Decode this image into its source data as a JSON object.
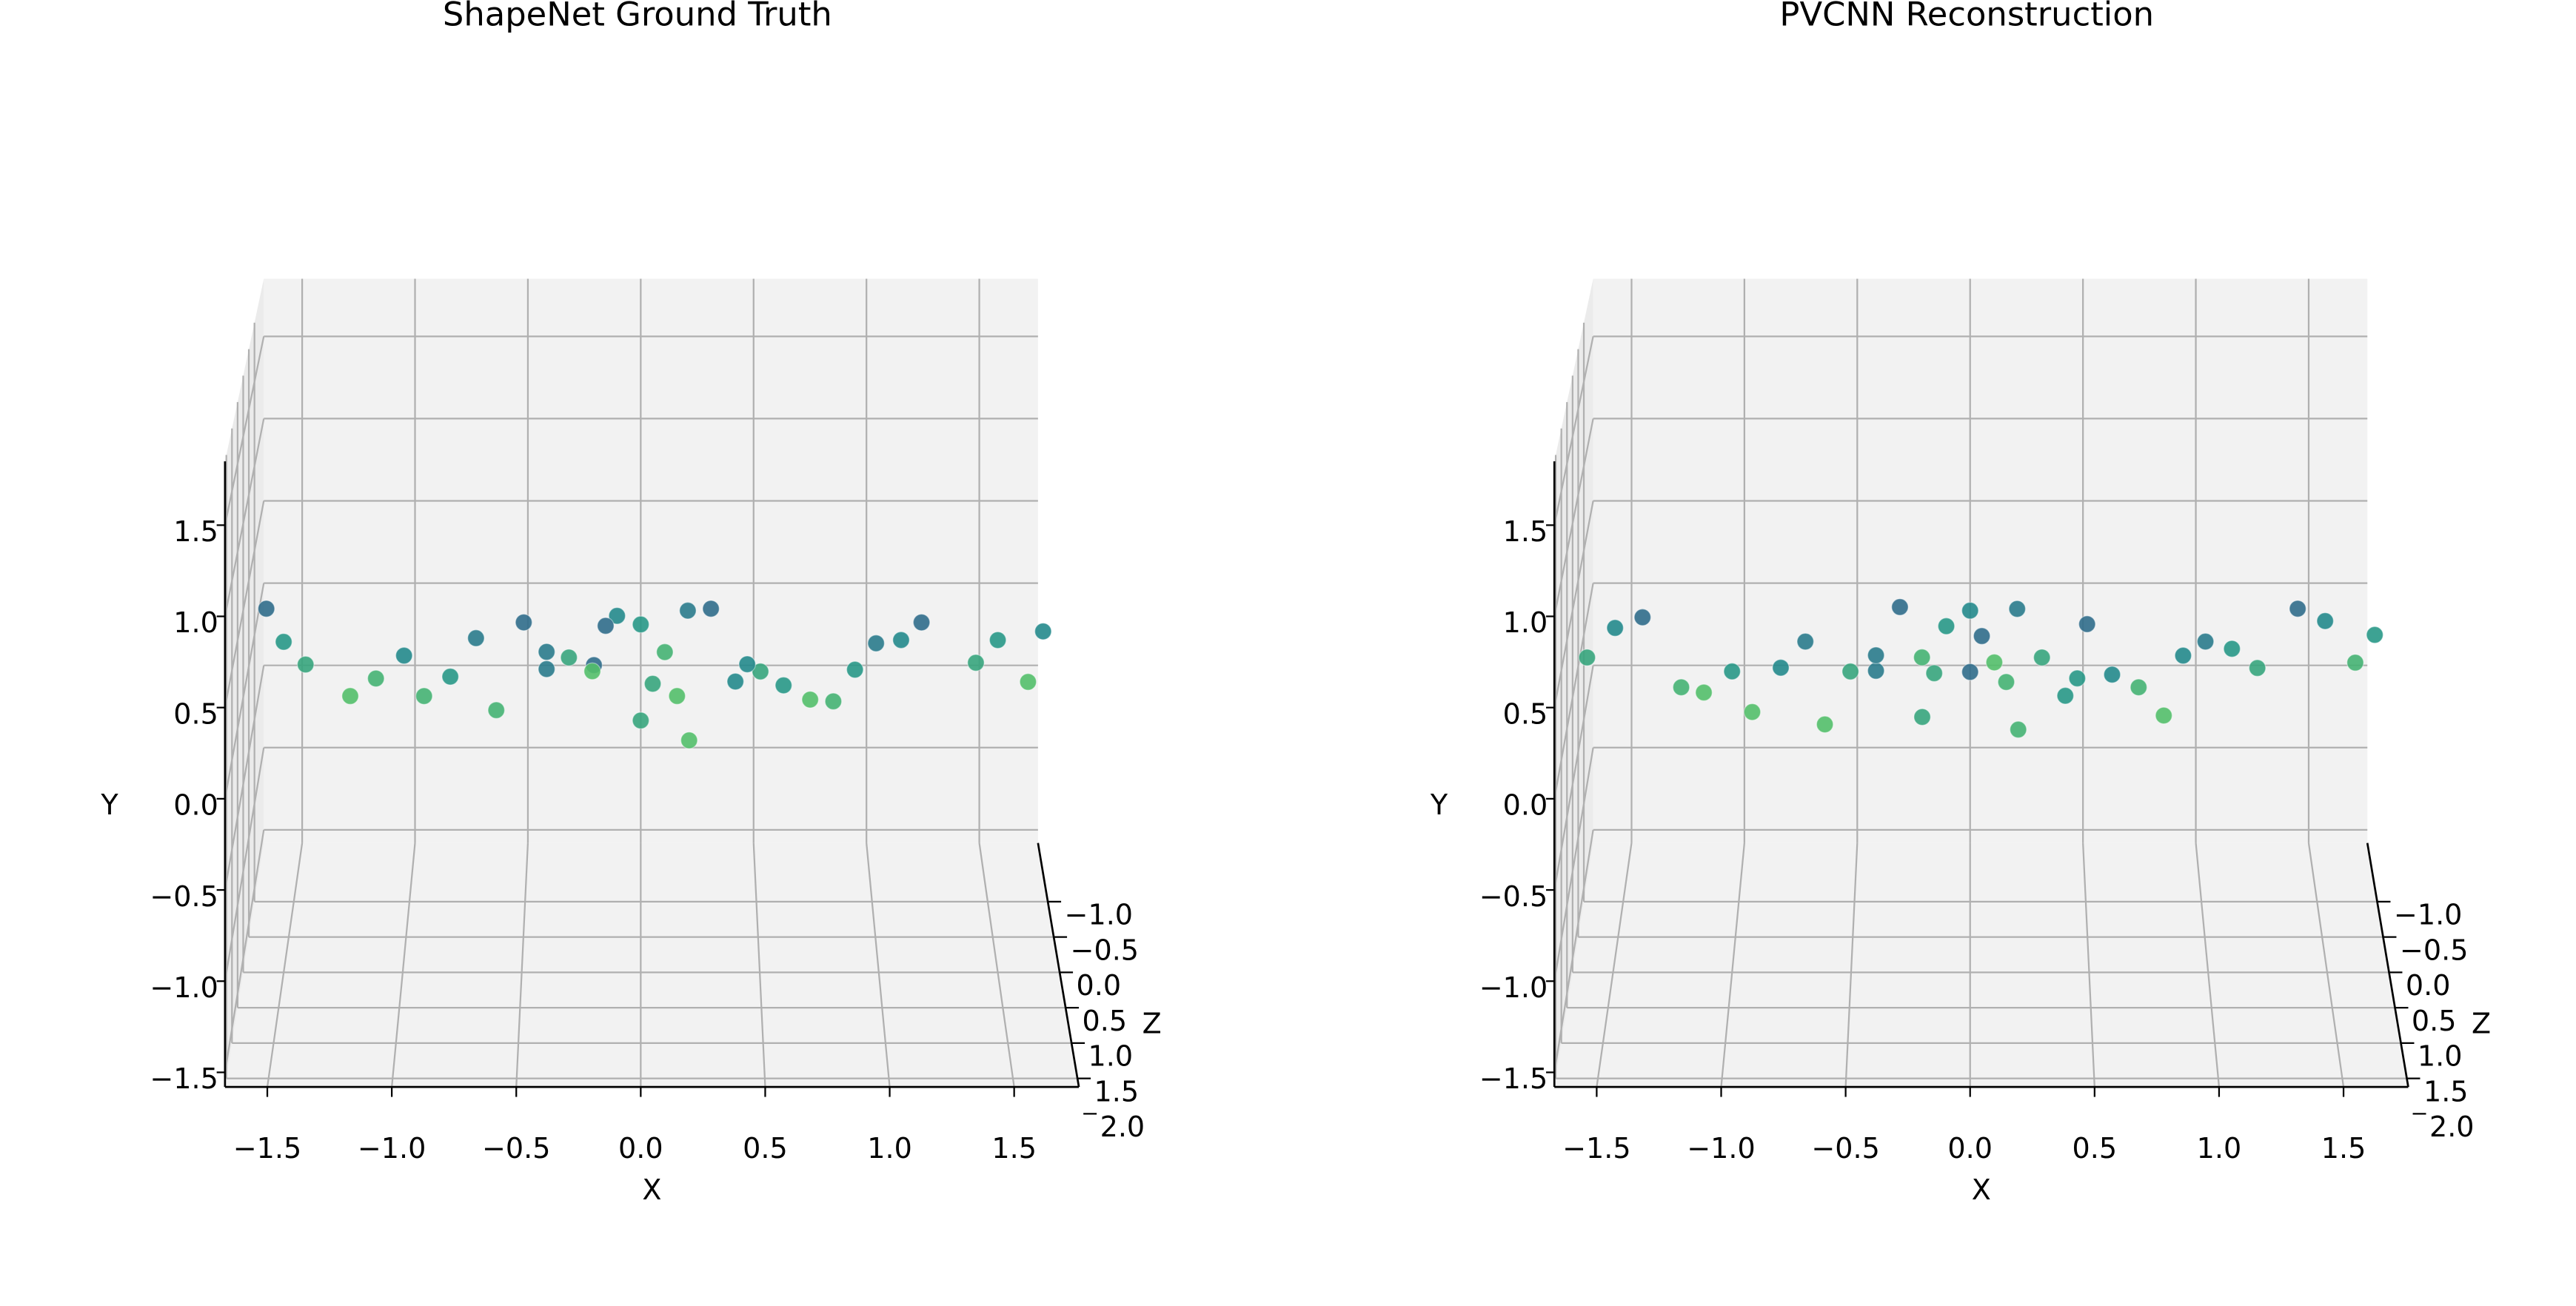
{
  "chart_data": [
    {
      "type": "scatter3d",
      "title": "ShapeNet Ground Truth",
      "xlabel": "X",
      "ylabel": "Y",
      "zlabel": "Z",
      "xlim": [
        -1.67,
        1.76
      ],
      "ylim": [
        -1.58,
        1.85
      ],
      "zlim": [
        -1.83,
        1.62
      ],
      "xticks": [
        {
          "value": -1.5,
          "label": "−1.5"
        },
        {
          "value": -1,
          "label": "−1.0"
        },
        {
          "value": -0.5,
          "label": "−0.5"
        },
        {
          "value": 0,
          "label": "0.0"
        },
        {
          "value": 0.5,
          "label": "0.5"
        },
        {
          "value": 1,
          "label": "1.0"
        },
        {
          "value": 1.5,
          "label": "1.5"
        }
      ],
      "yticks": [
        {
          "value": -1.5,
          "label": "−1.5"
        },
        {
          "value": -1,
          "label": "−1.0"
        },
        {
          "value": -0.5,
          "label": "−0.5"
        },
        {
          "value": 0,
          "label": "0.0"
        },
        {
          "value": 0.5,
          "label": "0.5"
        },
        {
          "value": 1,
          "label": "1.0"
        },
        {
          "value": 1.5,
          "label": "1.5"
        }
      ],
      "zticks": [
        {
          "value": -1,
          "label": "−1.0"
        },
        {
          "value": -0.5,
          "label": "−0.5"
        },
        {
          "value": 0,
          "label": "0.0"
        },
        {
          "value": 0.5,
          "label": "0.5"
        },
        {
          "value": 1,
          "label": "1.0"
        },
        {
          "value": 1.5,
          "label": "1.5"
        },
        {
          "value": 2,
          "label": "2.0"
        }
      ],
      "grid": true,
      "colormap": "viridis",
      "x": [
        -1.6,
        -1.4,
        -1.2,
        -1.0,
        -0.8,
        -0.6,
        -0.4,
        -0.2,
        0,
        0.2,
        0.4,
        0.6,
        0.8,
        1.0,
        1.2,
        1.4,
        1.6,
        1.7,
        -1.5,
        -1.1,
        -0.7,
        -0.5,
        -0.3,
        -0.2,
        -0.1,
        0,
        0.1,
        0.2,
        0.3,
        0.5,
        0.7,
        1.1,
        1.5,
        -0.9,
        -0.4,
        -0.15,
        0.05,
        0.15,
        0.45,
        0.9
      ],
      "y": [
        0.3,
        0.26,
        0.22,
        0.17,
        0.12,
        0.07,
        0.02,
        -0.03,
        -0.06,
        -0.03,
        0.02,
        0.07,
        0.12,
        0.17,
        0.22,
        0.27,
        0.3,
        0.31,
        0.32,
        0.25,
        0.2,
        0.22,
        0.3,
        0.36,
        0.4,
        0.42,
        0.4,
        0.36,
        0.3,
        0.22,
        0.2,
        0.26,
        0.33,
        0.15,
        0.12,
        0.2,
        0.15,
        0.22,
        0.12,
        0.16
      ],
      "z": [
        -0.6,
        0.2,
        0.6,
        -0.2,
        0,
        0.4,
        -0.4,
        -0.6,
        0.2,
        0.6,
        -0.2,
        0,
        0.4,
        -0.4,
        -0.6,
        0.2,
        0.6,
        -0.2,
        0,
        0.4,
        -0.4,
        -0.6,
        0.2,
        0.6,
        -0.2,
        0,
        0.4,
        -0.4,
        -0.6,
        0.2,
        0.6,
        -0.2,
        0,
        0.4,
        -0.4,
        -0.6,
        0.2,
        0.6,
        -0.2,
        0
      ]
    },
    {
      "type": "scatter3d",
      "title": "PVCNN Reconstruction",
      "xlabel": "X",
      "ylabel": "Y",
      "zlabel": "Z",
      "xlim": [
        -1.67,
        1.76
      ],
      "ylim": [
        -1.58,
        1.85
      ],
      "zlim": [
        -1.83,
        1.62
      ],
      "xticks": [
        {
          "value": -1.5,
          "label": "−1.5"
        },
        {
          "value": -1,
          "label": "−1.0"
        },
        {
          "value": -0.5,
          "label": "−0.5"
        },
        {
          "value": 0,
          "label": "0.0"
        },
        {
          "value": 0.5,
          "label": "0.5"
        },
        {
          "value": 1,
          "label": "1.0"
        },
        {
          "value": 1.5,
          "label": "1.5"
        }
      ],
      "yticks": [
        {
          "value": -1.5,
          "label": "−1.5"
        },
        {
          "value": -1,
          "label": "−1.0"
        },
        {
          "value": -0.5,
          "label": "−0.5"
        },
        {
          "value": 0,
          "label": "0.0"
        },
        {
          "value": 0.5,
          "label": "0.5"
        },
        {
          "value": 1,
          "label": "1.0"
        },
        {
          "value": 1.5,
          "label": "1.5"
        }
      ],
      "zticks": [
        {
          "value": -1,
          "label": "−1.0"
        },
        {
          "value": -0.5,
          "label": "−0.5"
        },
        {
          "value": 0,
          "label": "0.0"
        },
        {
          "value": 0.5,
          "label": "0.5"
        },
        {
          "value": 1,
          "label": "1.0"
        },
        {
          "value": 1.5,
          "label": "1.5"
        },
        {
          "value": 2,
          "label": "2.0"
        }
      ],
      "grid": true,
      "colormap": "viridis",
      "x": [
        -1.6,
        -1.4,
        -1.2,
        -1.0,
        -0.8,
        -0.6,
        -0.4,
        -0.2,
        0,
        0.2,
        0.4,
        0.6,
        0.8,
        1.0,
        1.2,
        1.4,
        1.6,
        1.7,
        -1.5,
        -1.1,
        -0.7,
        -0.5,
        -0.3,
        -0.2,
        -0.1,
        0,
        0.1,
        0.2,
        0.3,
        0.5,
        0.7,
        1.1,
        1.5,
        -0.9,
        -0.4,
        -0.15,
        0.05,
        0.15,
        0.45,
        0.9
      ],
      "y": [
        0.3,
        0.25,
        0.2,
        0.15,
        0.1,
        0.06,
        0.01,
        -0.04,
        -0.07,
        -0.04,
        0.01,
        0.06,
        0.11,
        0.18,
        0.24,
        0.3,
        0.34,
        0.36,
        0.33,
        0.24,
        0.18,
        0.22,
        0.31,
        0.37,
        0.41,
        0.43,
        0.41,
        0.37,
        0.3,
        0.21,
        0.2,
        0.28,
        0.37,
        0.13,
        0.1,
        0.21,
        0.14,
        0.23,
        0.11,
        0.17
      ],
      "z": [
        0.2,
        -0.6,
        0.4,
        0,
        -0.2,
        0.6,
        -0.4,
        0.2,
        -0.6,
        0.4,
        0,
        -0.2,
        0.6,
        -0.4,
        0.2,
        -0.6,
        0.4,
        0,
        -0.2,
        0.6,
        -0.4,
        0.2,
        -0.6,
        0.4,
        0,
        -0.2,
        0.6,
        -0.4,
        0.2,
        -0.6,
        0.4,
        0,
        -0.2,
        0.6,
        -0.4,
        0.2,
        -0.6,
        0.4,
        0,
        -0.2
      ]
    }
  ]
}
